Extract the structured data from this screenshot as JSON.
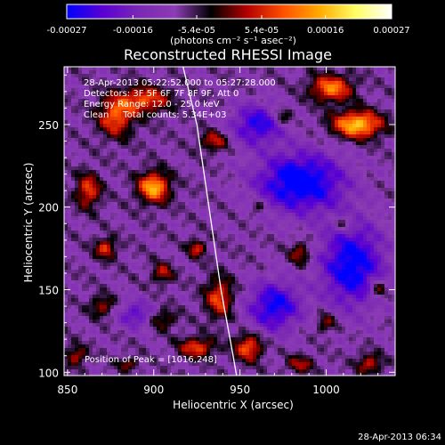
{
  "chart_data": {
    "type": "heatmap",
    "title": "Reconstructed RHESSI Image",
    "xlabel": "Heliocentric X (arcsec)",
    "ylabel": "Heliocentric Y (arcsec)",
    "xlim": [
      848,
      1040
    ],
    "ylim": [
      98,
      285
    ],
    "xticks": [
      "850",
      "900",
      "950",
      "1000"
    ],
    "xtick_values": [
      850,
      900,
      950,
      1000
    ],
    "yticks": [
      "100",
      "150",
      "200",
      "250"
    ],
    "ytick_values": [
      100,
      150,
      200,
      250
    ],
    "colorbar": {
      "range": [
        -0.00027,
        0.00027
      ],
      "ticks": [
        "-0.00027",
        "-0.00016",
        "-5.4e-05",
        "5.4e-05",
        "0.00016",
        "0.00027"
      ],
      "tick_values": [
        -0.00027,
        -0.00016,
        -5.4e-05,
        5.4e-05,
        0.00016,
        0.00027
      ],
      "units_label": "(photons cm⁻² s⁻¹ asec⁻²)",
      "colors": [
        "#0000ff",
        "#5a00d2",
        "#7a28b4",
        "#8c3cb4",
        "#000000",
        "#b40000",
        "#ff5000",
        "#ffaa00",
        "#ffff64",
        "#ffffff"
      ]
    },
    "info_lines": [
      "28-Apr-2013 05:22:52.000 to 05:27:28.000",
      "Detectors: 3F 5F 6F 7F 8F 9F, Att 0",
      "Energy Range: 12.0 - 25.0 keV",
      "Clean     Total counts: 5.34E+03"
    ],
    "peak_label": "Position of Peak = [1016,248]",
    "limb_curve": [
      [
        917,
        285
      ],
      [
        925,
        250
      ],
      [
        932,
        200
      ],
      [
        939,
        150
      ],
      [
        946,
        110
      ],
      [
        948,
        98
      ]
    ],
    "hot_spots": [
      {
        "x": 1018,
        "y": 250,
        "sx": 14,
        "sy": 8,
        "amp": 0.00026
      },
      {
        "x": 1003,
        "y": 272,
        "sx": 12,
        "sy": 8,
        "amp": 0.0002
      },
      {
        "x": 900,
        "y": 212,
        "sx": 9,
        "sy": 9,
        "amp": 0.00024
      },
      {
        "x": 878,
        "y": 255,
        "sx": 10,
        "sy": 12,
        "amp": 0.00018
      },
      {
        "x": 895,
        "y": 265,
        "sx": 14,
        "sy": 8,
        "amp": 0.00017
      },
      {
        "x": 862,
        "y": 210,
        "sx": 7,
        "sy": 10,
        "amp": 0.00016
      },
      {
        "x": 935,
        "y": 240,
        "sx": 8,
        "sy": 6,
        "amp": 0.00013
      },
      {
        "x": 925,
        "y": 175,
        "sx": 5,
        "sy": 5,
        "amp": 0.00014
      },
      {
        "x": 905,
        "y": 160,
        "sx": 6,
        "sy": 6,
        "amp": 0.00012
      },
      {
        "x": 872,
        "y": 175,
        "sx": 6,
        "sy": 6,
        "amp": 0.00015
      },
      {
        "x": 938,
        "y": 145,
        "sx": 8,
        "sy": 12,
        "amp": 0.00016
      },
      {
        "x": 955,
        "y": 115,
        "sx": 8,
        "sy": 8,
        "amp": 0.00018
      },
      {
        "x": 925,
        "y": 115,
        "sx": 10,
        "sy": 6,
        "amp": 0.00016
      },
      {
        "x": 870,
        "y": 140,
        "sx": 7,
        "sy": 6,
        "amp": 0.00011
      },
      {
        "x": 905,
        "y": 132,
        "sx": 8,
        "sy": 6,
        "amp": 0.0001
      },
      {
        "x": 985,
        "y": 172,
        "sx": 6,
        "sy": 7,
        "amp": 0.00012
      },
      {
        "x": 1000,
        "y": 130,
        "sx": 6,
        "sy": 6,
        "amp": 0.0001
      },
      {
        "x": 1030,
        "y": 150,
        "sx": 5,
        "sy": 6,
        "amp": 0.00012
      },
      {
        "x": 1025,
        "y": 105,
        "sx": 7,
        "sy": 6,
        "amp": 0.00013
      },
      {
        "x": 985,
        "y": 105,
        "sx": 8,
        "sy": 5,
        "amp": 0.00011
      },
      {
        "x": 1010,
        "y": 190,
        "sx": 6,
        "sy": 5,
        "amp": 9e-05
      },
      {
        "x": 975,
        "y": 255,
        "sx": 6,
        "sy": 6,
        "amp": 9e-05
      },
      {
        "x": 960,
        "y": 200,
        "sx": 5,
        "sy": 5,
        "amp": 8e-05
      },
      {
        "x": 855,
        "y": 110,
        "sx": 6,
        "sy": 6,
        "amp": 0.00012
      },
      {
        "x": 885,
        "y": 105,
        "sx": 6,
        "sy": 4,
        "amp": 0.0001
      }
    ],
    "cold_spots": [
      {
        "x": 985,
        "y": 215,
        "sx": 25,
        "sy": 18,
        "amp": -0.00022
      },
      {
        "x": 1015,
        "y": 165,
        "sx": 18,
        "sy": 25,
        "amp": -0.0002
      },
      {
        "x": 970,
        "y": 140,
        "sx": 15,
        "sy": 15,
        "amp": -0.00018
      },
      {
        "x": 960,
        "y": 250,
        "sx": 15,
        "sy": 12,
        "amp": -0.00016
      },
      {
        "x": 890,
        "y": 135,
        "sx": 10,
        "sy": 8,
        "amp": -0.00012
      }
    ]
  },
  "timestamp": "28-Apr-2013 06:34"
}
